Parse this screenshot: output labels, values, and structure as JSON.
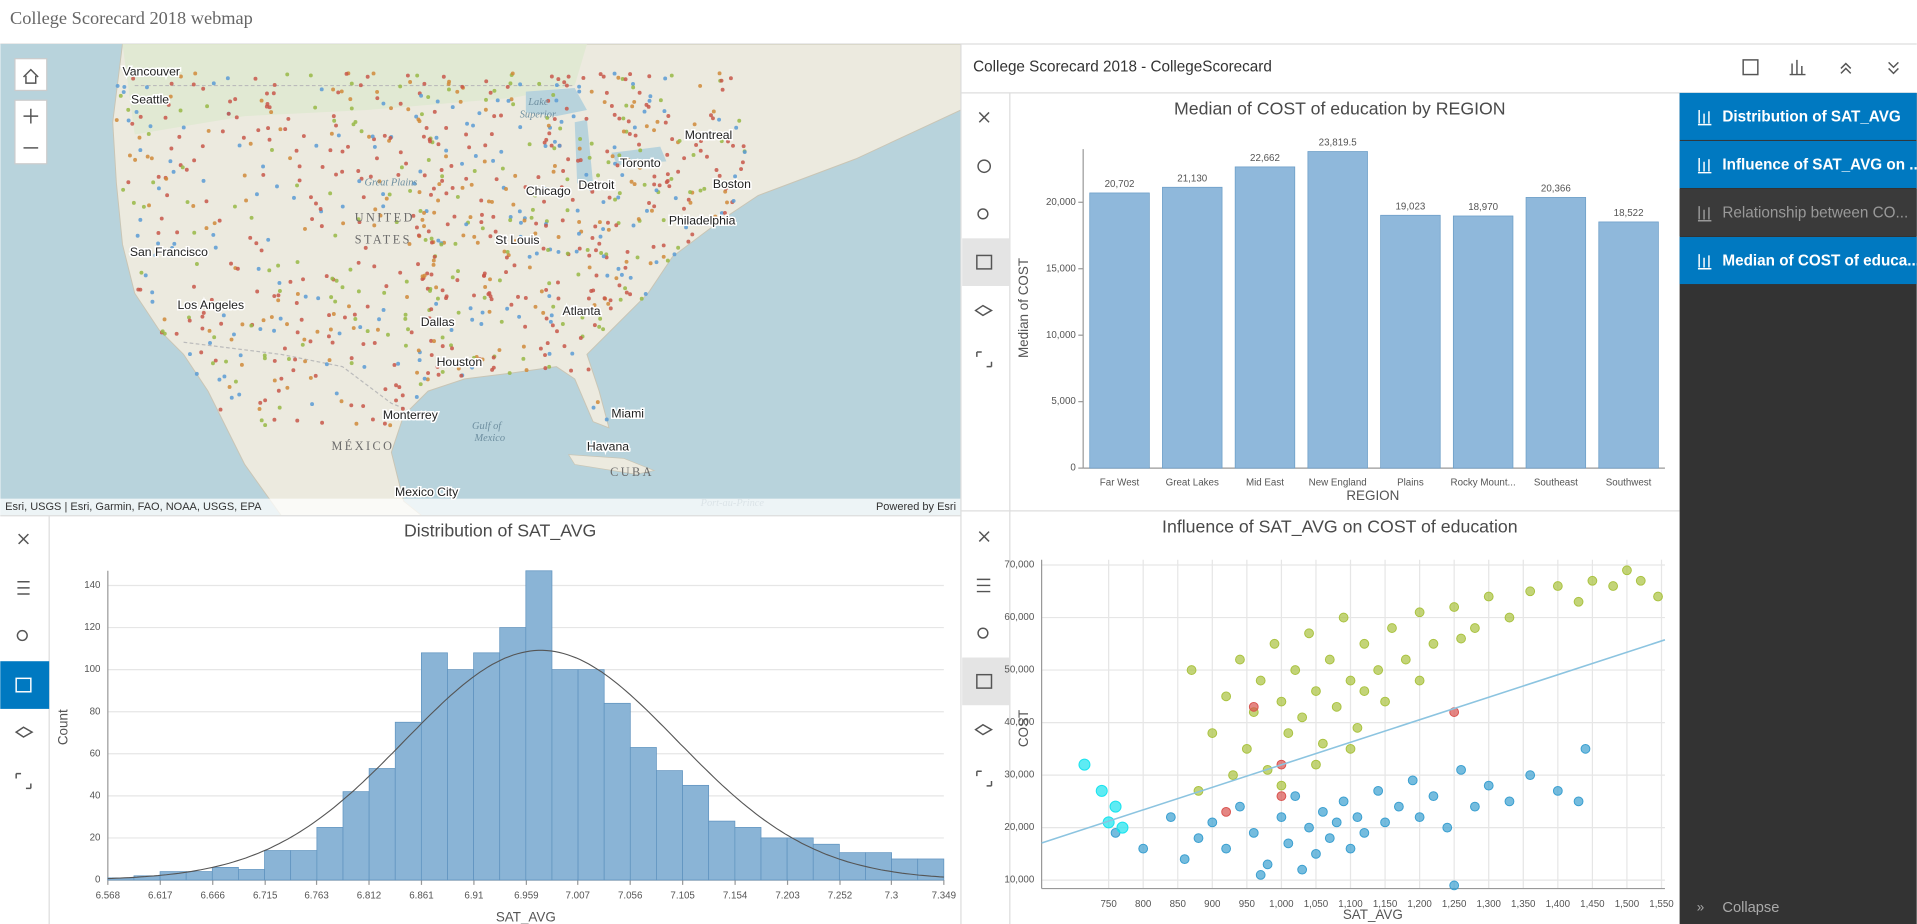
{
  "header": {
    "title": "College Scorecard 2018 webmap"
  },
  "map": {
    "labels": [
      "Vancouver",
      "Seattle",
      "San Francisco",
      "Los Angeles",
      "Dallas",
      "Houston",
      "Monterrey",
      "Mexico City",
      "Atlanta",
      "St Louis",
      "Chicago",
      "Detroit",
      "Toronto",
      "Montreal",
      "Boston",
      "Philadelphia",
      "Miami",
      "Havana",
      "UNITED",
      "STATES",
      "MÉXICO",
      "CUBA",
      "Great Plains",
      "Gulf of",
      "Mexico",
      "Lake",
      "Superior",
      "Port-au-Prince"
    ],
    "attribution": "Esri, USGS | Esri, Garmin, FAO, NOAA, USGS, EPA",
    "powered_by": "Powered by Esri"
  },
  "panel": {
    "title": "College Scorecard 2018 - CollegeScorecard"
  },
  "sidebar": {
    "items": [
      "Distribution of SAT_AVG",
      "Influence of SAT_AVG on ...",
      "Relationship between CO...",
      "Median of COST of educa..."
    ],
    "collapse": "Collapse"
  },
  "chart_data": [
    {
      "type": "histogram",
      "title": "Distribution of SAT_AVG",
      "x_label": "SAT_AVG",
      "y_label": "Count",
      "color": "#8ab4d6",
      "bins": [
        6.568,
        6.5924,
        6.6168,
        6.6412,
        6.6656,
        6.69,
        6.7144,
        6.7388,
        6.7633,
        6.7877,
        6.8121,
        6.8365,
        6.8609,
        6.8853,
        6.9097,
        6.9341,
        6.9585,
        6.9829,
        7.0073,
        7.0317,
        7.0561,
        7.0805,
        7.1049,
        7.1293,
        7.1538,
        7.1782,
        7.2026,
        7.227,
        7.2514,
        7.2758,
        7.3002,
        7.3246,
        7.349
      ],
      "values": [
        1,
        2,
        4,
        4,
        6,
        5,
        14,
        14,
        25,
        42,
        53,
        75,
        108,
        100,
        108,
        120,
        147,
        100,
        100,
        84,
        63,
        52,
        45,
        28,
        25,
        20,
        20,
        17,
        13,
        13,
        10,
        10
      ],
      "xlim": [
        6.568,
        7.349
      ],
      "xticks": [
        6.568,
        6.617,
        6.666,
        6.715,
        6.763,
        6.812,
        6.861,
        6.91,
        6.959,
        7.007,
        7.056,
        7.105,
        7.154,
        7.203,
        7.252,
        7.3,
        7.349
      ],
      "ylim": [
        0,
        147
      ],
      "yticks": [
        0,
        20,
        40,
        60,
        80,
        100,
        120,
        140
      ],
      "grid": "y"
    },
    {
      "type": "bar",
      "title": "Median of COST of education by REGION",
      "x_label": "REGION",
      "y_label": "Median of COST",
      "color": "#8fb8db",
      "categories": [
        "Far West",
        "Great Lakes",
        "Mid East",
        "New England",
        "Plains",
        "Rocky Mount...",
        "Southeast",
        "Southwest"
      ],
      "values": [
        20702,
        21130,
        22662,
        23819.5,
        19023,
        18970,
        20366,
        18522
      ],
      "value_labels": [
        "20,702",
        "21,130",
        "22,662",
        "23,819.5",
        "19,023",
        "18,970",
        "20,366",
        "18,522"
      ],
      "ylim": [
        0,
        24000
      ],
      "yticks": [
        0,
        {
          "value": 5000,
          "label": "5,000"
        },
        {
          "value": 10000,
          "label": "10,000"
        },
        {
          "value": 15000,
          "label": "15,000"
        },
        {
          "value": 20000,
          "label": "20,000"
        }
      ],
      "grid": false
    },
    {
      "type": "scatter",
      "title": "Influence of SAT_AVG on COST of education",
      "x_label": "SAT_AVG",
      "y_label": "COST",
      "trend_color": "#8cc4e0",
      "series": [
        {
          "color": "#a9c23f",
          "x": [
            870,
            900,
            920,
            940,
            950,
            960,
            970,
            980,
            990,
            1000,
            1010,
            1020,
            1030,
            1040,
            1050,
            1060,
            1070,
            1080,
            1090,
            1100,
            1110,
            1120,
            1140,
            1150,
            1160,
            1180,
            1200,
            1220,
            1250,
            1280,
            1300,
            1330,
            1360,
            1400,
            1430,
            1450,
            1480,
            1500,
            1520,
            1545,
            930,
            1000,
            1050,
            1100,
            880,
            1120,
            1200,
            1260
          ],
          "values": [
            50000,
            38000,
            45000,
            52000,
            35000,
            42000,
            48000,
            31000,
            55000,
            44000,
            38000,
            50000,
            41000,
            57000,
            46000,
            36000,
            52000,
            43000,
            60000,
            48000,
            39000,
            55000,
            50000,
            44000,
            58000,
            52000,
            61000,
            55000,
            62000,
            58000,
            64000,
            60000,
            65000,
            66000,
            63000,
            67000,
            66000,
            69000,
            67000,
            64000,
            30000,
            28000,
            32000,
            35000,
            27000,
            46000,
            48000,
            56000
          ]
        },
        {
          "color": "#3a9fd0",
          "x": [
            760,
            800,
            840,
            860,
            880,
            900,
            920,
            940,
            960,
            980,
            1000,
            1010,
            1020,
            1040,
            1050,
            1060,
            1070,
            1080,
            1090,
            1100,
            1110,
            1120,
            1140,
            1150,
            1170,
            1190,
            1200,
            1220,
            1240,
            1260,
            1280,
            1300,
            1330,
            1360,
            1400,
            1440,
            1430,
            1250,
            970,
            1030
          ],
          "values": [
            19000,
            16000,
            22000,
            14000,
            18000,
            21000,
            16000,
            24000,
            19000,
            13000,
            22000,
            17000,
            26000,
            20000,
            15000,
            23000,
            18000,
            21000,
            25000,
            16000,
            22000,
            19000,
            27000,
            21000,
            24000,
            29000,
            22000,
            26000,
            20000,
            31000,
            24000,
            28000,
            25000,
            30000,
            27000,
            35000,
            25000,
            9000,
            11000,
            12000
          ]
        },
        {
          "color": "#d9534f",
          "x": [
            960,
            1000,
            1250,
            920,
            1000
          ],
          "values": [
            43000,
            32000,
            42000,
            23000,
            26000
          ]
        },
        {
          "color": "#19e3ee",
          "x": [
            715,
            740,
            760,
            770,
            750
          ],
          "values": [
            32000,
            27000,
            24000,
            20000,
            21000
          ]
        }
      ],
      "xlim": [
        653,
        1555
      ],
      "xticks": [
        750,
        800,
        850,
        900,
        950,
        {
          "value": 1000,
          "label": "1,000"
        },
        {
          "value": 1050,
          "label": "1,050"
        },
        {
          "value": 1100,
          "label": "1,100"
        },
        {
          "value": 1150,
          "label": "1,150"
        },
        {
          "value": 1200,
          "label": "1,200"
        },
        {
          "value": 1250,
          "label": "1,250"
        },
        {
          "value": 1300,
          "label": "1,300"
        },
        {
          "value": 1350,
          "label": "1,350"
        },
        {
          "value": 1400,
          "label": "1,400"
        },
        {
          "value": 1450,
          "label": "1,450"
        },
        {
          "value": 1500,
          "label": "1,500"
        },
        {
          "value": 1550,
          "label": "1,550"
        }
      ],
      "ylim": [
        8400,
        71000
      ],
      "yticks": [
        {
          "value": 10000,
          "label": "10,000"
        },
        {
          "value": 20000,
          "label": "20,000"
        },
        {
          "value": 30000,
          "label": "30,000"
        },
        {
          "value": 40000,
          "label": "40,000"
        },
        {
          "value": 50000,
          "label": "50,000"
        },
        {
          "value": 60000,
          "label": "60,000"
        },
        {
          "value": 70000,
          "label": "70,000"
        }
      ],
      "grid": "both"
    }
  ]
}
